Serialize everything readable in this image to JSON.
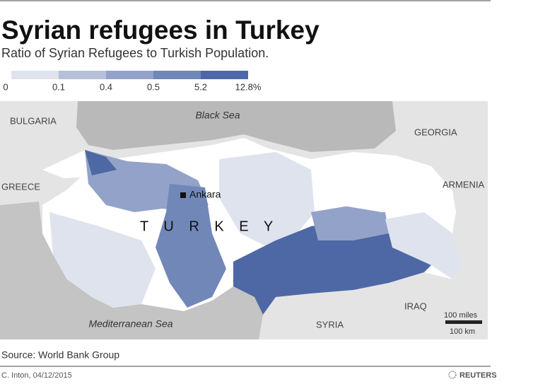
{
  "header": {
    "title": "Syrian refugees in Turkey",
    "subtitle": "Ratio of Syrian Refugees to Turkish Population."
  },
  "legend": {
    "labels": [
      "0",
      "0.1",
      "0.4",
      "0.5",
      "5.2",
      "12.8%"
    ],
    "colors": [
      "#dfe3ee",
      "#b6c0d8",
      "#93a2c8",
      "#7187b8",
      "#4d68a4"
    ]
  },
  "map": {
    "labels": {
      "black_sea": "Black Sea",
      "mediterranean": "Mediterranean Sea",
      "bulgaria": "BULGARIA",
      "greece": "GREECE",
      "georgia": "GEORGIA",
      "armenia": "ARMENIA",
      "iraq": "IRAQ",
      "syria": "SYRIA",
      "ankara": "Ankara",
      "turkey": "T U R K E Y"
    },
    "scale": {
      "miles": "100 miles",
      "km": "100 km"
    }
  },
  "footer": {
    "source": "Source: World Bank Group",
    "credit": "C. Inton, 04/12/2015",
    "agency": "REUTERS"
  }
}
